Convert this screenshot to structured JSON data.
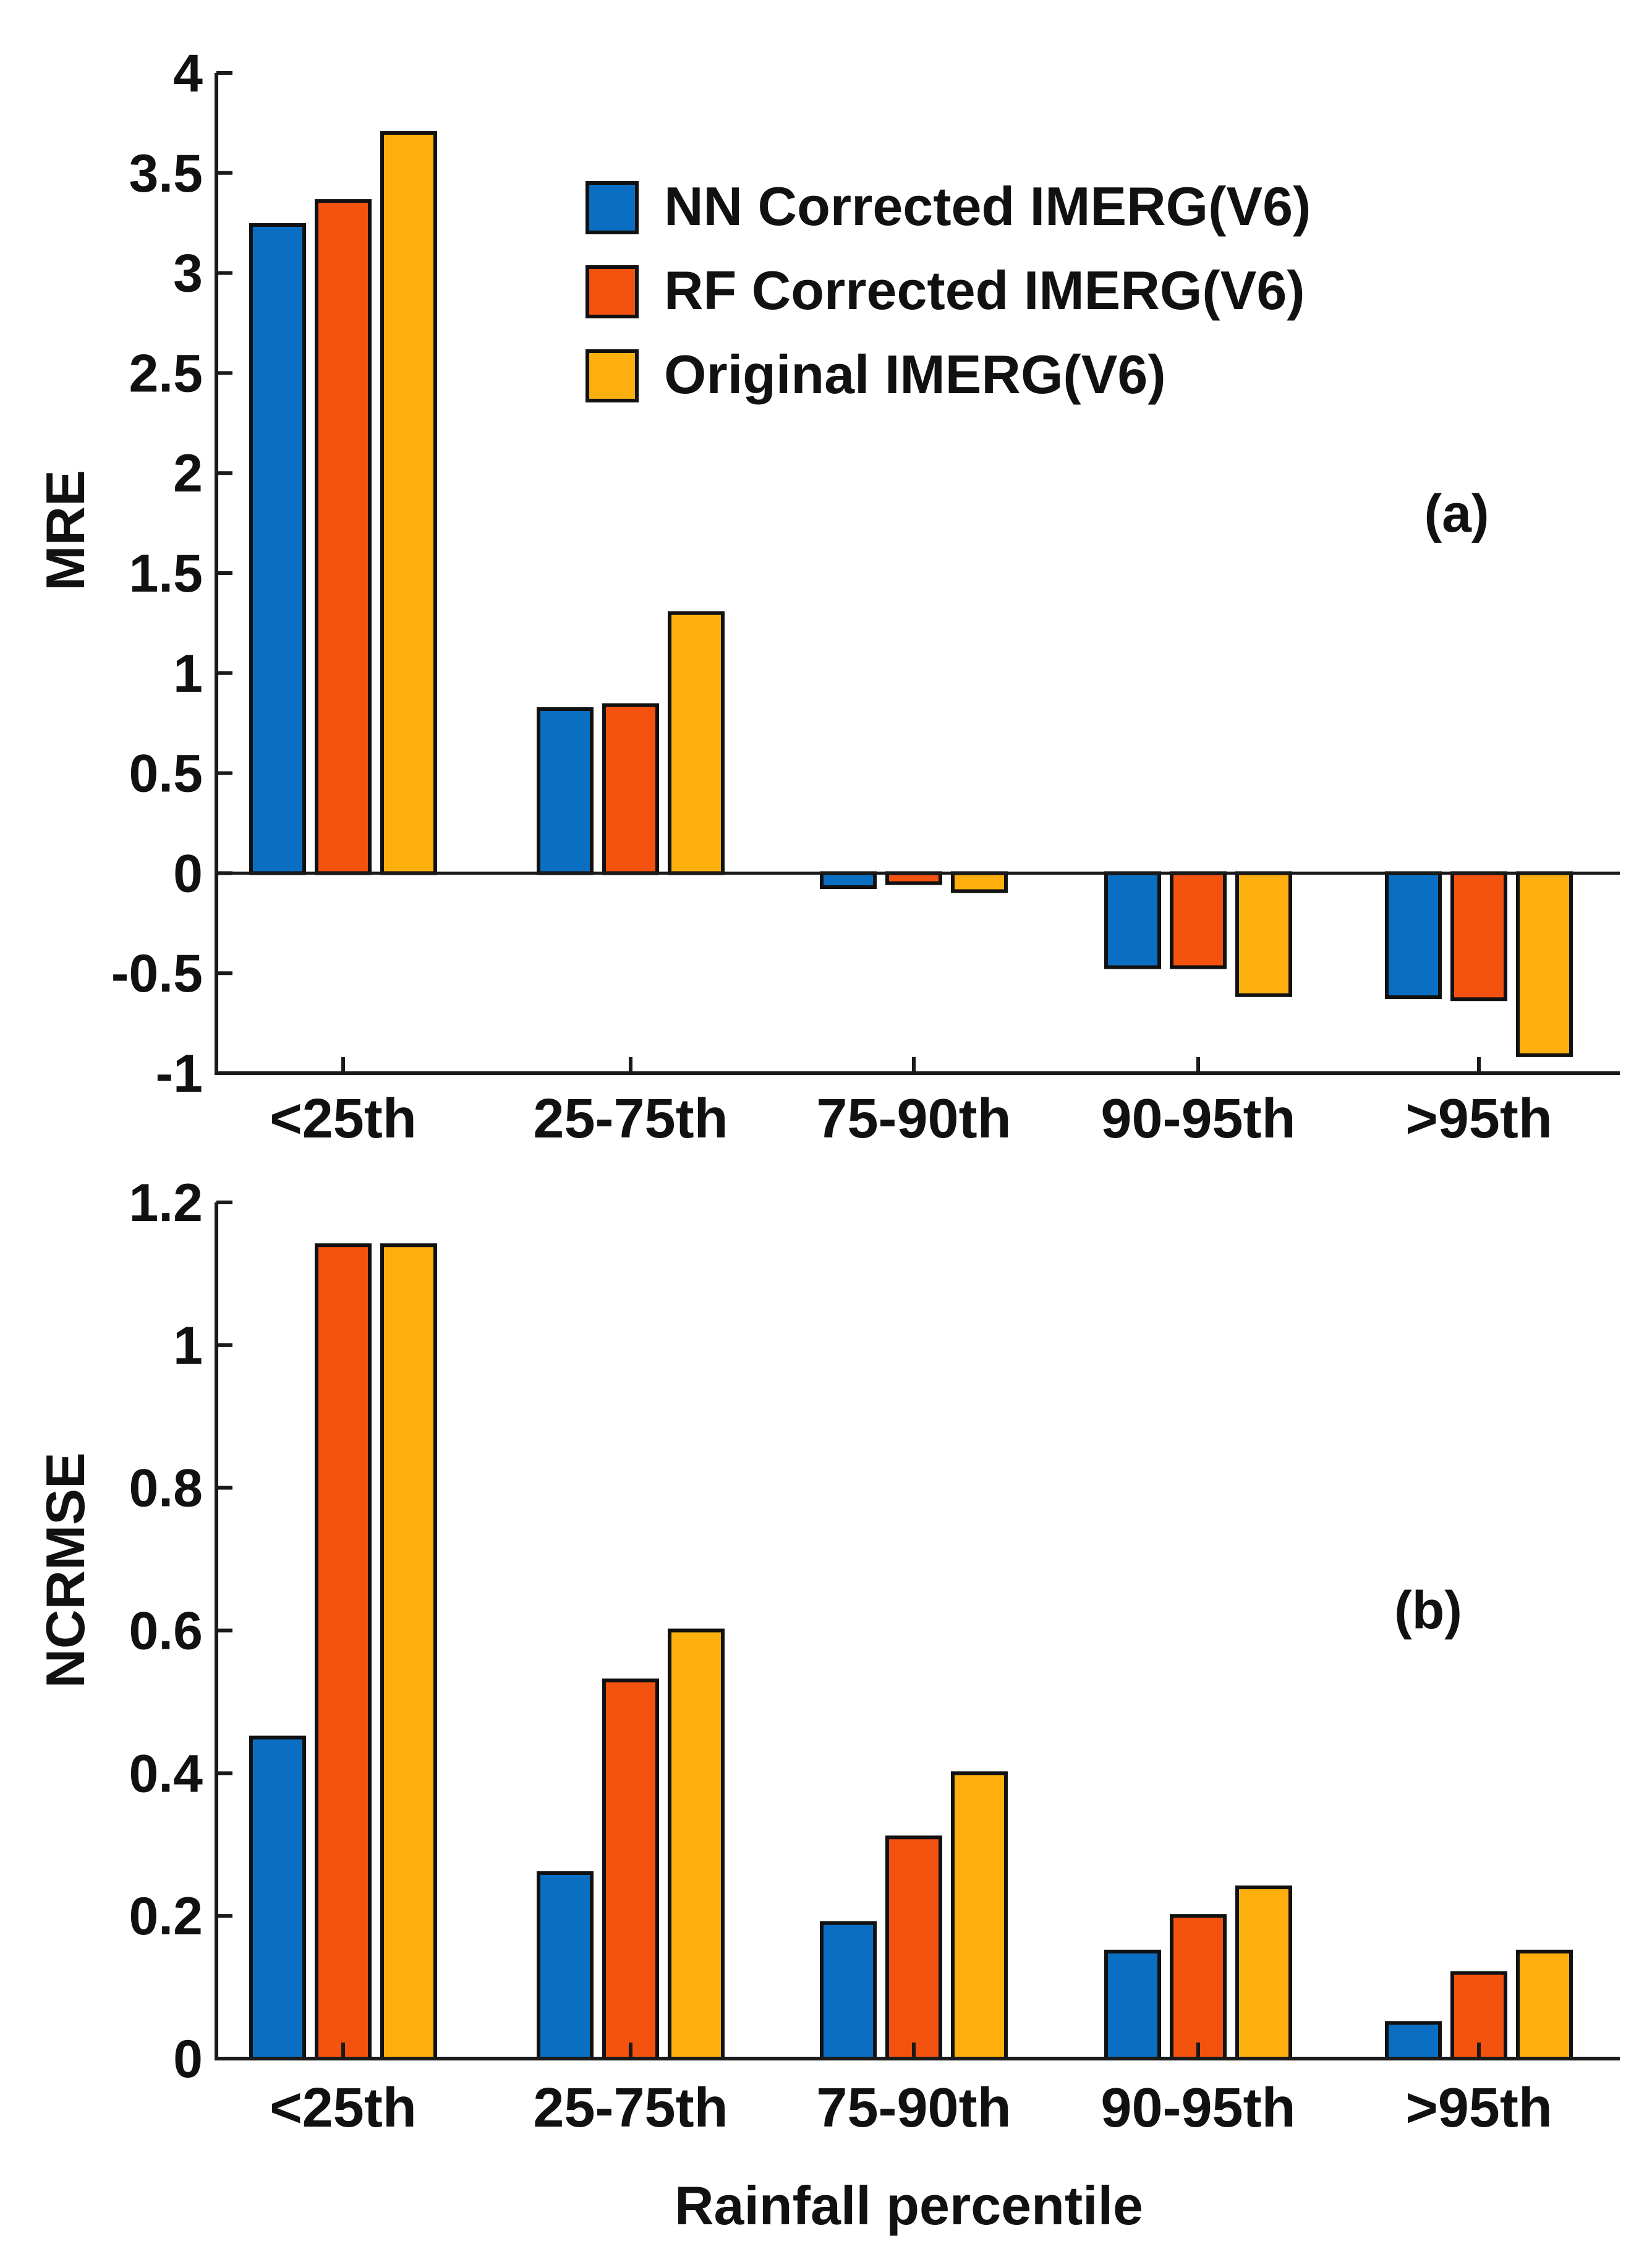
{
  "colors": {
    "nn": "#0a6fc2",
    "rf": "#f4520f",
    "orig": "#fdb00d"
  },
  "legend": {
    "items": [
      {
        "label": "NN Corrected IMERG(V6)",
        "color_key": "nn"
      },
      {
        "label": "RF Corrected IMERG(V6)",
        "color_key": "rf"
      },
      {
        "label": "Original IMERG(V6)",
        "color_key": "orig"
      }
    ]
  },
  "shared_xlabel": "Rainfall percentile",
  "chart_data": [
    {
      "type": "bar",
      "panel_label": "(a)",
      "title": "",
      "ylabel": "MRE",
      "xlabel": "",
      "ylim": [
        -1,
        4
      ],
      "yticks": [
        "4",
        "3.5",
        "3",
        "2.5",
        "2",
        "1.5",
        "1",
        "0.5",
        "0",
        "-0.5",
        "-1"
      ],
      "ytick_values": [
        4,
        3.5,
        3,
        2.5,
        2,
        1.5,
        1,
        0.5,
        0,
        -0.5,
        -1
      ],
      "categories": [
        "<25th",
        "25-75th",
        "75-90th",
        "90-95th",
        ">95th"
      ],
      "series": [
        {
          "name": "NN Corrected IMERG(V6)",
          "values": [
            3.24,
            0.82,
            -0.07,
            -0.47,
            -0.62
          ]
        },
        {
          "name": "RF Corrected IMERG(V6)",
          "values": [
            3.36,
            0.84,
            -0.05,
            -0.47,
            -0.63
          ]
        },
        {
          "name": "Original IMERG(V6)",
          "values": [
            3.7,
            1.3,
            -0.09,
            -0.61,
            -0.91
          ]
        }
      ]
    },
    {
      "type": "bar",
      "panel_label": "(b)",
      "title": "",
      "ylabel": "NCRMSE",
      "xlabel": "Rainfall percentile",
      "ylim": [
        0,
        1.2
      ],
      "yticks": [
        "1.2",
        "1",
        "0.8",
        "0.6",
        "0.4",
        "0.2",
        "0"
      ],
      "ytick_values": [
        1.2,
        1,
        0.8,
        0.6,
        0.4,
        0.2,
        0
      ],
      "categories": [
        "<25th",
        "25-75th",
        "75-90th",
        "90-95th",
        ">95th"
      ],
      "series": [
        {
          "name": "NN Corrected IMERG(V6)",
          "values": [
            0.45,
            0.26,
            0.19,
            0.15,
            0.05
          ]
        },
        {
          "name": "RF Corrected IMERG(V6)",
          "values": [
            1.14,
            0.53,
            0.31,
            0.2,
            0.12
          ]
        },
        {
          "name": "Original IMERG(V6)",
          "values": [
            1.14,
            0.6,
            0.4,
            0.24,
            0.15
          ]
        }
      ]
    }
  ]
}
